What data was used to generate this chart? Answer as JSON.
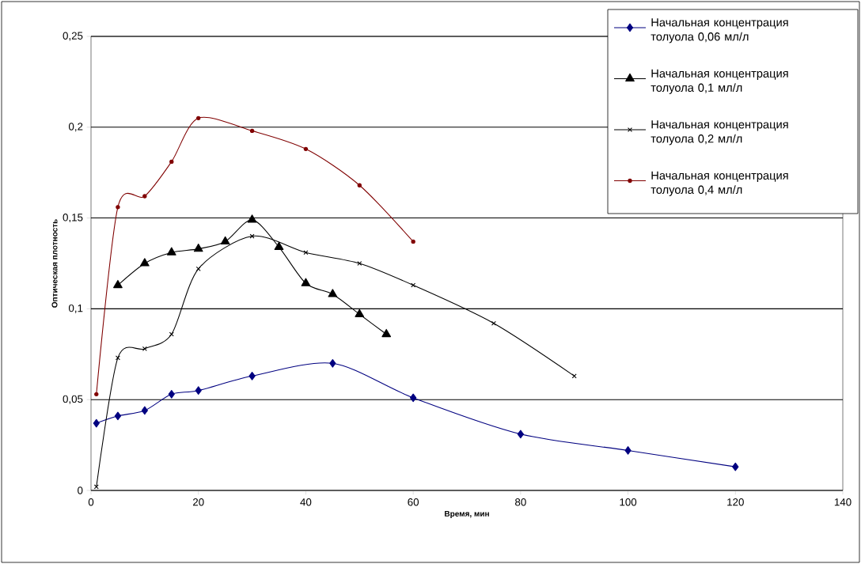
{
  "chart_data": {
    "type": "line",
    "xlabel": "Время, мин",
    "ylabel": "Оптическая плотность",
    "xlim": [
      0,
      140
    ],
    "xticks": [
      0,
      20,
      40,
      60,
      80,
      100,
      120,
      140
    ],
    "ylim": [
      0,
      0.25
    ],
    "yticks": [
      {
        "value": 0,
        "label": "0"
      },
      {
        "value": 0.05,
        "label": "0,05"
      },
      {
        "value": 0.1,
        "label": "0,1"
      },
      {
        "value": 0.15,
        "label": "0,15"
      },
      {
        "value": 0.2,
        "label": "0,2"
      },
      {
        "value": 0.25,
        "label": "0,25"
      }
    ],
    "grid": "y",
    "legend": "top right",
    "line_style": "solid",
    "series": [
      {
        "name": "Начальная концентрация толуола 0,06 мл/л",
        "color": "#000080",
        "marker": "diamond",
        "x": [
          1,
          5,
          10,
          15,
          20,
          30,
          45,
          60,
          80,
          100,
          120
        ],
        "values": [
          0.037,
          0.041,
          0.044,
          0.053,
          0.055,
          0.063,
          0.07,
          0.051,
          0.031,
          0.022,
          0.013
        ]
      },
      {
        "name": "Начальная концентрация толуола 0,1 мл/л",
        "color": "#000000",
        "marker": "triangle",
        "x": [
          5,
          10,
          15,
          20,
          25,
          30,
          35,
          40,
          45,
          50,
          55
        ],
        "values": [
          0.113,
          0.125,
          0.131,
          0.133,
          0.137,
          0.149,
          0.134,
          0.114,
          0.108,
          0.097,
          0.086
        ]
      },
      {
        "name": "Начальная концентрация толуола 0,2 мл/л",
        "color": "#000000",
        "marker": "cross",
        "x": [
          1,
          5,
          10,
          15,
          20,
          30,
          40,
          50,
          60,
          75,
          90
        ],
        "values": [
          0.002,
          0.073,
          0.078,
          0.086,
          0.122,
          0.14,
          0.131,
          0.125,
          0.113,
          0.092,
          0.063
        ]
      },
      {
        "name": "Начальная концентрация толуола 0,4 мл/л",
        "color": "#800000",
        "marker": "circle",
        "x": [
          1,
          5,
          10,
          15,
          20,
          30,
          40,
          50,
          60
        ],
        "values": [
          0.053,
          0.156,
          0.162,
          0.181,
          0.205,
          0.198,
          0.188,
          0.168,
          0.137
        ]
      }
    ]
  }
}
